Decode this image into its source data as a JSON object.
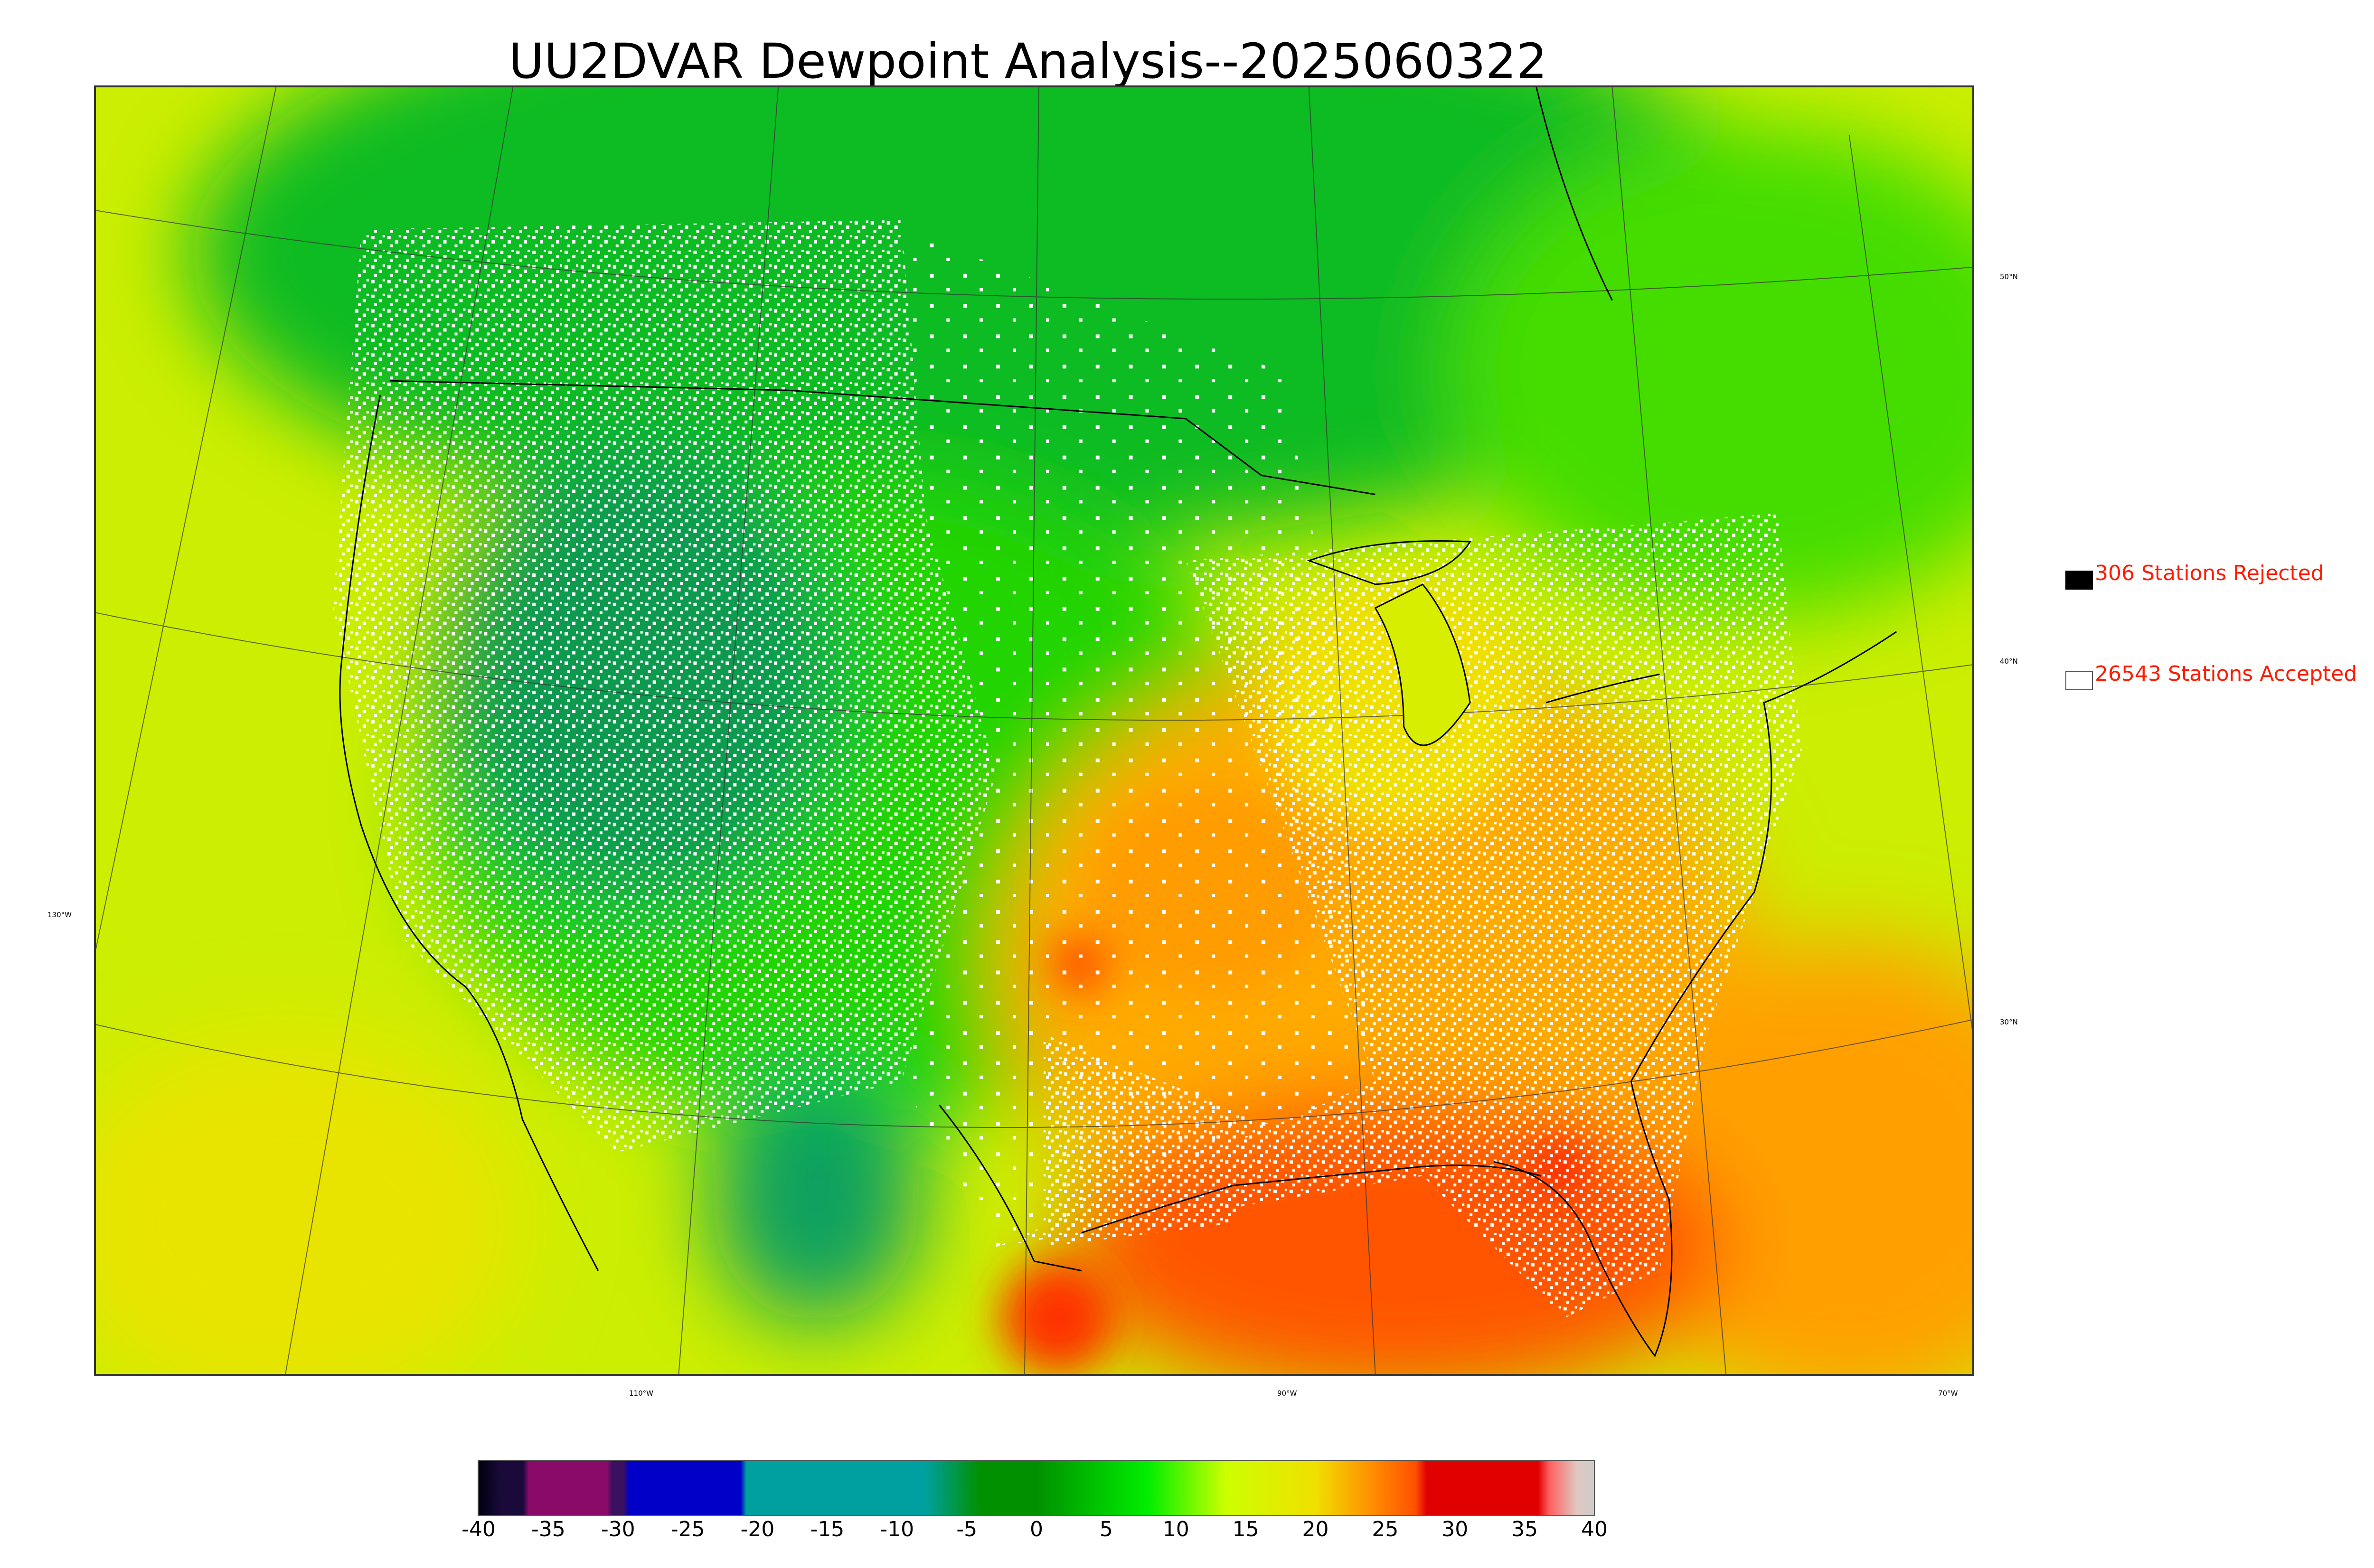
{
  "title": "UU2DVAR Dewpoint Analysis--2025060322",
  "legend": {
    "rejected": {
      "label": "306 Stations Rejected",
      "swatch_color": "#000000"
    },
    "accepted": {
      "label": "26543 Stations Accepted",
      "swatch_color": "#ffffff"
    }
  },
  "latitude_labels": [
    "50°N",
    "40°N",
    "30°N"
  ],
  "longitude_labels": [
    "130°W",
    "110°W",
    "90°W",
    "70°W"
  ],
  "colorbar": {
    "ticks": [
      "-40",
      "-35",
      "-30",
      "-25",
      "-20",
      "-15",
      "-10",
      "-5",
      "0",
      "5",
      "10",
      "15",
      "20",
      "25",
      "30",
      "35",
      "40"
    ],
    "range": [
      -40,
      40
    ],
    "colors": {
      "very_dry": "#1a0a3a",
      "purple": "#8a0a6a",
      "blue": "#0000c8",
      "teal": "#00a0a0",
      "dark_green": "#009000",
      "green": "#00ee00",
      "yellow_green": "#ccff00",
      "yellow": "#f0e000",
      "orange": "#ff9000",
      "red": "#e00000",
      "light_red": "#ff6060",
      "pale": "#e0c8c0"
    }
  },
  "field_colors": {
    "mountain_dry": "#10a060",
    "northern_green": "#00bb20",
    "plains_green": "#22dd00",
    "ocean_yellow": "#d8ee00",
    "southeast_orange": "#ff9a00",
    "gulf_red": "#ff4a00"
  }
}
